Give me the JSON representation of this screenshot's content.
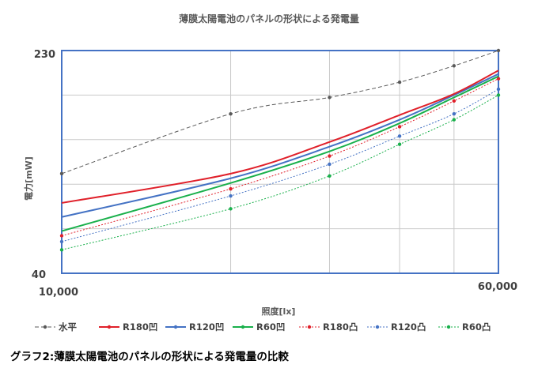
{
  "chart_data": {
    "type": "line",
    "title": "薄膜太陽電池のパネルの形状による発電量",
    "xlabel": "照度[lx]",
    "ylabel": "電力[mW]",
    "x_scale": "log",
    "xlim": [
      10000,
      60000
    ],
    "ylim": [
      40,
      230
    ],
    "x_tick_labels": [
      "10,000",
      "60,000"
    ],
    "y_tick_labels": [
      "230",
      "40"
    ],
    "grid": true,
    "legend_position": "bottom",
    "x": [
      10000,
      20000,
      30000,
      40000,
      50000,
      60000
    ],
    "series": [
      {
        "name": "水平",
        "color": "#595959",
        "style": "dashed",
        "marker": true,
        "values": [
          125,
          176,
          190,
          203,
          217,
          230
        ]
      },
      {
        "name": "R180凹",
        "color": "#e0202a",
        "style": "solid",
        "marker": false,
        "values": [
          100,
          125,
          152,
          175,
          193,
          213
        ]
      },
      {
        "name": "R120凹",
        "color": "#4472c4",
        "style": "solid",
        "marker": false,
        "values": [
          88,
          121,
          148,
          171,
          192,
          210
        ]
      },
      {
        "name": "R60凹",
        "color": "#19b04b",
        "style": "solid",
        "marker": false,
        "values": [
          76,
          117,
          144,
          168,
          190,
          208
        ]
      },
      {
        "name": "R180凸",
        "color": "#e0202a",
        "style": "dotted",
        "marker": true,
        "values": [
          72,
          112,
          140,
          165,
          187,
          206
        ]
      },
      {
        "name": "R120凸",
        "color": "#4472c4",
        "style": "dotted",
        "marker": true,
        "values": [
          67,
          106,
          133,
          157,
          176,
          197
        ]
      },
      {
        "name": "R60凸",
        "color": "#19b04b",
        "style": "dotted",
        "marker": true,
        "values": [
          60,
          95,
          123,
          150,
          171,
          192
        ]
      }
    ]
  },
  "caption": "グラフ2:薄膜太陽電池のパネルの形状による発電量の比較"
}
